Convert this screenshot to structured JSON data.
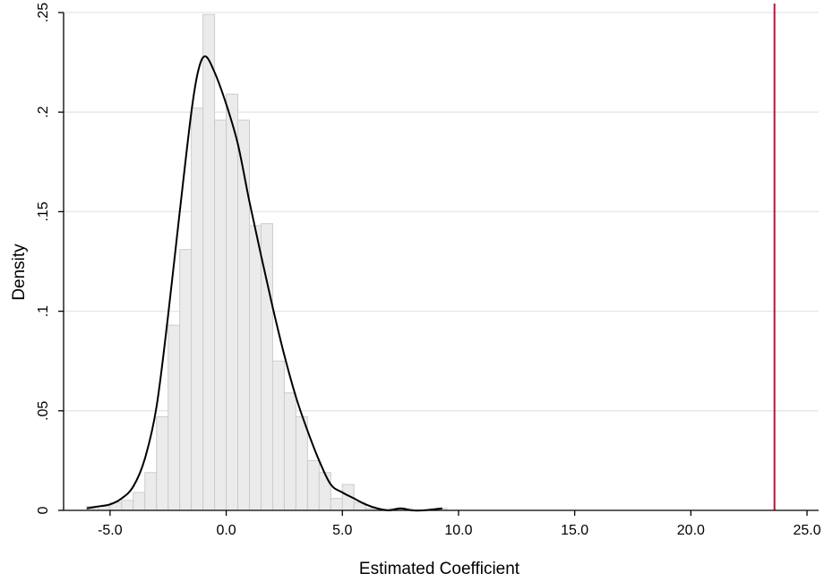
{
  "chart_data": {
    "type": "bar",
    "xlabel": "Estimated Coefficient",
    "ylabel": "Density",
    "xlim": [
      -7.0,
      25.5
    ],
    "ylim": [
      0,
      0.25
    ],
    "xticks": [
      -5,
      0,
      5,
      10,
      15,
      20,
      25
    ],
    "xtick_labels": [
      "-5.0",
      "0.0",
      "5.0",
      "10.0",
      "15.0",
      "20.0",
      "25.0"
    ],
    "yticks": [
      0,
      0.05,
      0.1,
      0.15,
      0.2,
      0.25
    ],
    "ytick_labels": [
      "0",
      ".05",
      ".1",
      ".15",
      ".2",
      ".25"
    ],
    "grid": true,
    "histogram": {
      "bin_width": 0.5,
      "bin_left": [
        -6.0,
        -5.5,
        -5.0,
        -4.5,
        -4.0,
        -3.5,
        -3.0,
        -2.5,
        -2.0,
        -1.5,
        -1.0,
        -0.5,
        0.0,
        0.5,
        1.0,
        1.5,
        2.0,
        2.5,
        3.0,
        3.5,
        4.0,
        4.5,
        5.0,
        5.5,
        6.0,
        6.5,
        7.0,
        7.5,
        8.0,
        8.5,
        9.0
      ],
      "density": [
        0.002,
        0.002,
        0.004,
        0.005,
        0.009,
        0.019,
        0.047,
        0.093,
        0.131,
        0.202,
        0.249,
        0.196,
        0.209,
        0.196,
        0.143,
        0.144,
        0.075,
        0.059,
        0.047,
        0.025,
        0.019,
        0.006,
        0.013,
        0.004,
        0.001,
        0.0,
        0.001,
        0.001,
        0.0,
        0.0,
        0.001
      ],
      "fill": "#ebebeb",
      "edge": "#cccccc"
    },
    "density_curve": {
      "x": [
        -6.0,
        -5.5,
        -5.0,
        -4.5,
        -4.0,
        -3.5,
        -3.0,
        -2.5,
        -2.0,
        -1.5,
        -1.2,
        -0.9,
        -0.5,
        0.0,
        0.5,
        1.0,
        1.5,
        2.0,
        2.5,
        3.0,
        3.5,
        4.0,
        4.5,
        5.0,
        5.5,
        6.0,
        6.5,
        7.0,
        7.5,
        8.0,
        8.5,
        9.3
      ],
      "y": [
        0.001,
        0.002,
        0.003,
        0.006,
        0.012,
        0.026,
        0.052,
        0.098,
        0.15,
        0.2,
        0.221,
        0.228,
        0.22,
        0.204,
        0.184,
        0.155,
        0.128,
        0.102,
        0.078,
        0.057,
        0.04,
        0.025,
        0.013,
        0.009,
        0.006,
        0.003,
        0.001,
        0.0,
        0.001,
        0.0,
        0.0,
        0.001
      ],
      "color": "#000000"
    },
    "reference_line": {
      "x": 23.6,
      "color": "#c0103a"
    }
  }
}
